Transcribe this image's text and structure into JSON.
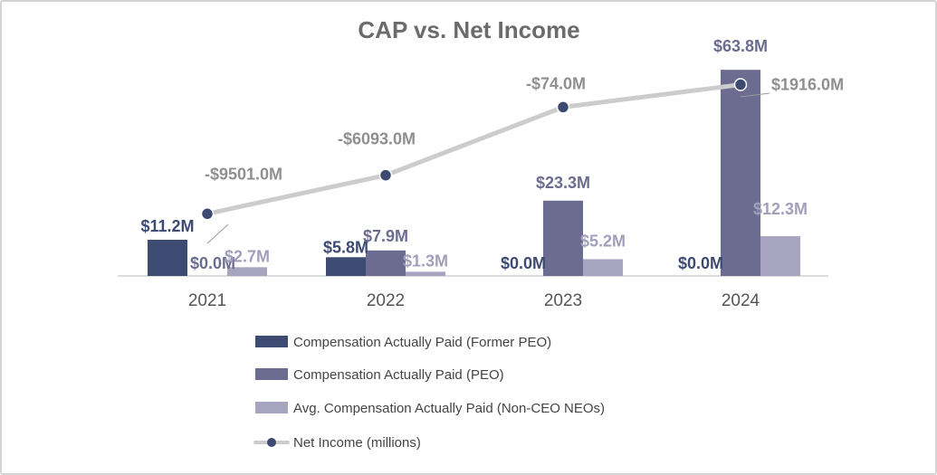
{
  "chart_data": {
    "type": "bar+line",
    "title": "CAP vs. Net Income",
    "categories": [
      "2021",
      "2022",
      "2023",
      "2024"
    ],
    "bar_ylim": [
      0,
      70
    ],
    "series": [
      {
        "key": "former",
        "name": "Compensation Actually Paid (Former PEO)",
        "kind": "bar",
        "color": "#3d4a72",
        "label_color": "#3d4a72",
        "values": [
          11.2,
          5.8,
          0.0,
          0.0
        ],
        "labels": [
          "$11.2M",
          "$5.8M",
          "$0.0M",
          "$0.0M"
        ]
      },
      {
        "key": "peo",
        "name": "Compensation Actually Paid (PEO)",
        "kind": "bar",
        "color": "#6c6c91",
        "label_color": "#6c6c91",
        "values": [
          0.0,
          7.9,
          23.3,
          63.8
        ],
        "labels": [
          "$0.0M",
          "$7.9M",
          "$23.3M",
          "$63.8M"
        ]
      },
      {
        "key": "neo",
        "name": "Avg. Compensation Actually Paid (Non-CEO NEOs)",
        "kind": "bar",
        "color": "#a7a4bf",
        "label_color": "#a19fbb",
        "values": [
          2.7,
          1.3,
          5.2,
          12.3
        ],
        "labels": [
          "$2.7M",
          "$1.3M",
          "$5.2M",
          "$12.3M"
        ]
      },
      {
        "key": "net",
        "name": "Net Income (millions)",
        "kind": "line",
        "color": "#cccccc",
        "marker_color": "#3d4a72",
        "values": [
          -9501.0,
          -6093.0,
          -74.0,
          1916.0
        ],
        "labels": [
          "-$9501.0M",
          "-$6093.0M",
          "-$74.0M",
          "$1916.0M"
        ]
      }
    ],
    "line_ylim": [
      -15000,
      3000
    ],
    "legend_position": "bottom"
  }
}
